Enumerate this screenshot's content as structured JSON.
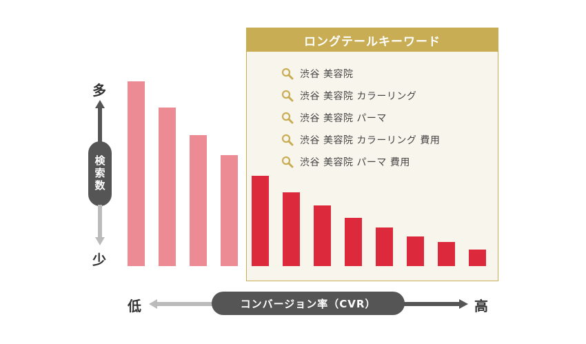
{
  "panel": {
    "title": "ロングテールキーワード",
    "keywords": [
      "渋谷 美容院",
      "渋谷 美容院 カラーリング",
      "渋谷 美容院 パーマ",
      "渋谷 美容院 カラーリング 費用",
      "渋谷 美容院 パーマ 費用"
    ],
    "icon": "search-icon"
  },
  "vertical_axis": {
    "top_label": "多",
    "bottom_label": "少",
    "name": "検索数"
  },
  "horizontal_axis": {
    "left_label": "低",
    "right_label": "高",
    "name": "コンバージョン率（CVR）"
  },
  "colors": {
    "head_bar": "#ec8b94",
    "tail_bar": "#dc2a3c",
    "panel_accent": "#c9ad55",
    "panel_bg": "#f8f5ec",
    "axis_dark": "#555555",
    "arrow_gray": "#999999"
  },
  "chart_data": {
    "type": "bar",
    "groups": [
      "head",
      "tail"
    ],
    "values": [
      100,
      86,
      71,
      60,
      49,
      40,
      33,
      26,
      21,
      16,
      13,
      9
    ],
    "group_of_bar": [
      "head",
      "head",
      "head",
      "head",
      "tail",
      "tail",
      "tail",
      "tail",
      "tail",
      "tail",
      "tail",
      "tail"
    ],
    "ylim": [
      0,
      100
    ]
  }
}
